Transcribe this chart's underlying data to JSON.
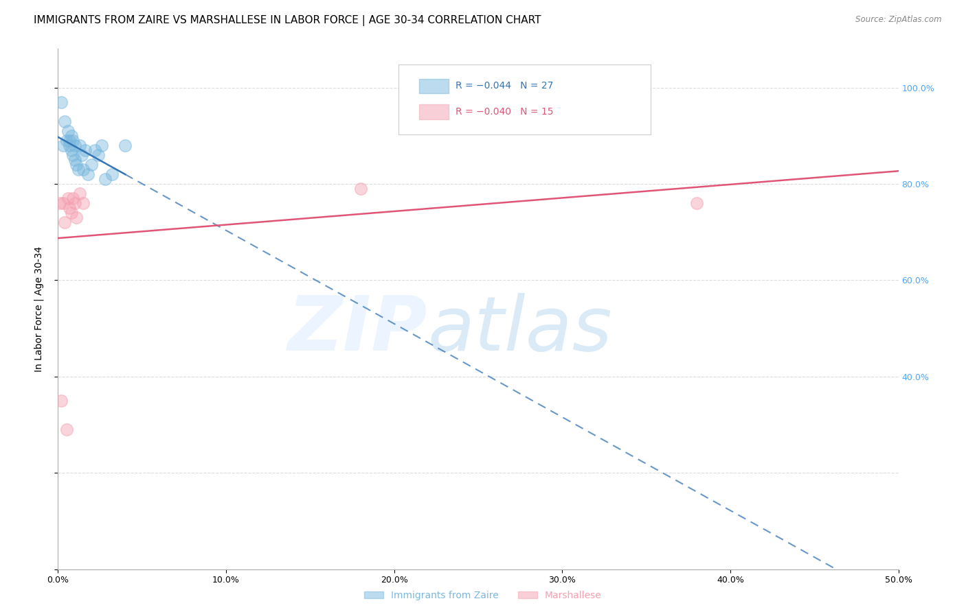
{
  "title": "IMMIGRANTS FROM ZAIRE VS MARSHALLESE IN LABOR FORCE | AGE 30-34 CORRELATION CHART",
  "source": "Source: ZipAtlas.com",
  "ylabel": "In Labor Force | Age 30-34",
  "xlim": [
    0.0,
    0.5
  ],
  "ylim": [
    0.0,
    1.08
  ],
  "background_color": "#ffffff",
  "grid_color": "#cccccc",
  "title_fontsize": 11,
  "axis_label_fontsize": 10,
  "tick_fontsize": 9,
  "marker_size": 160,
  "zaire_color": "#7ab8de",
  "marshallese_color": "#f4a0b0",
  "zaire_line_color": "#3575b5",
  "marshallese_line_color": "#e05575",
  "zaire_x": [
    0.002,
    0.003,
    0.004,
    0.005,
    0.006,
    0.007,
    0.007,
    0.008,
    0.008,
    0.009,
    0.009,
    0.01,
    0.01,
    0.011,
    0.012,
    0.013,
    0.014,
    0.015,
    0.016,
    0.018,
    0.02,
    0.022,
    0.024,
    0.026,
    0.028,
    0.032,
    0.04
  ],
  "zaire_y": [
    0.97,
    0.88,
    0.93,
    0.89,
    0.91,
    0.88,
    0.89,
    0.87,
    0.9,
    0.86,
    0.89,
    0.85,
    0.88,
    0.84,
    0.83,
    0.88,
    0.86,
    0.83,
    0.87,
    0.82,
    0.84,
    0.87,
    0.86,
    0.88,
    0.81,
    0.82,
    0.88
  ],
  "marshallese_x": [
    0.001,
    0.002,
    0.003,
    0.004,
    0.005,
    0.006,
    0.007,
    0.008,
    0.009,
    0.01,
    0.011,
    0.013,
    0.015,
    0.18,
    0.38
  ],
  "marshallese_y": [
    0.76,
    0.35,
    0.76,
    0.72,
    0.29,
    0.77,
    0.75,
    0.74,
    0.77,
    0.76,
    0.73,
    0.78,
    0.76,
    0.79,
    0.76
  ],
  "right_ytick_values": [
    0.4,
    0.6,
    0.8,
    1.0
  ],
  "right_ytick_labels": [
    "40.0%",
    "60.0%",
    "80.0%",
    "100.0%"
  ],
  "right_ytick_color": "#4da6ff",
  "xtick_values": [
    0.0,
    0.1,
    0.2,
    0.3,
    0.4,
    0.5
  ],
  "xtick_labels": [
    "0.0%",
    "10.0%",
    "20.0%",
    "30.0%",
    "40.0%",
    "50.0%"
  ],
  "legend_zaire_label": "R = −0.044   N = 27",
  "legend_marsh_label": "R = −0.040   N = 15",
  "bottom_legend_zaire": "Immigrants from Zaire",
  "bottom_legend_marsh": "Marshallese"
}
